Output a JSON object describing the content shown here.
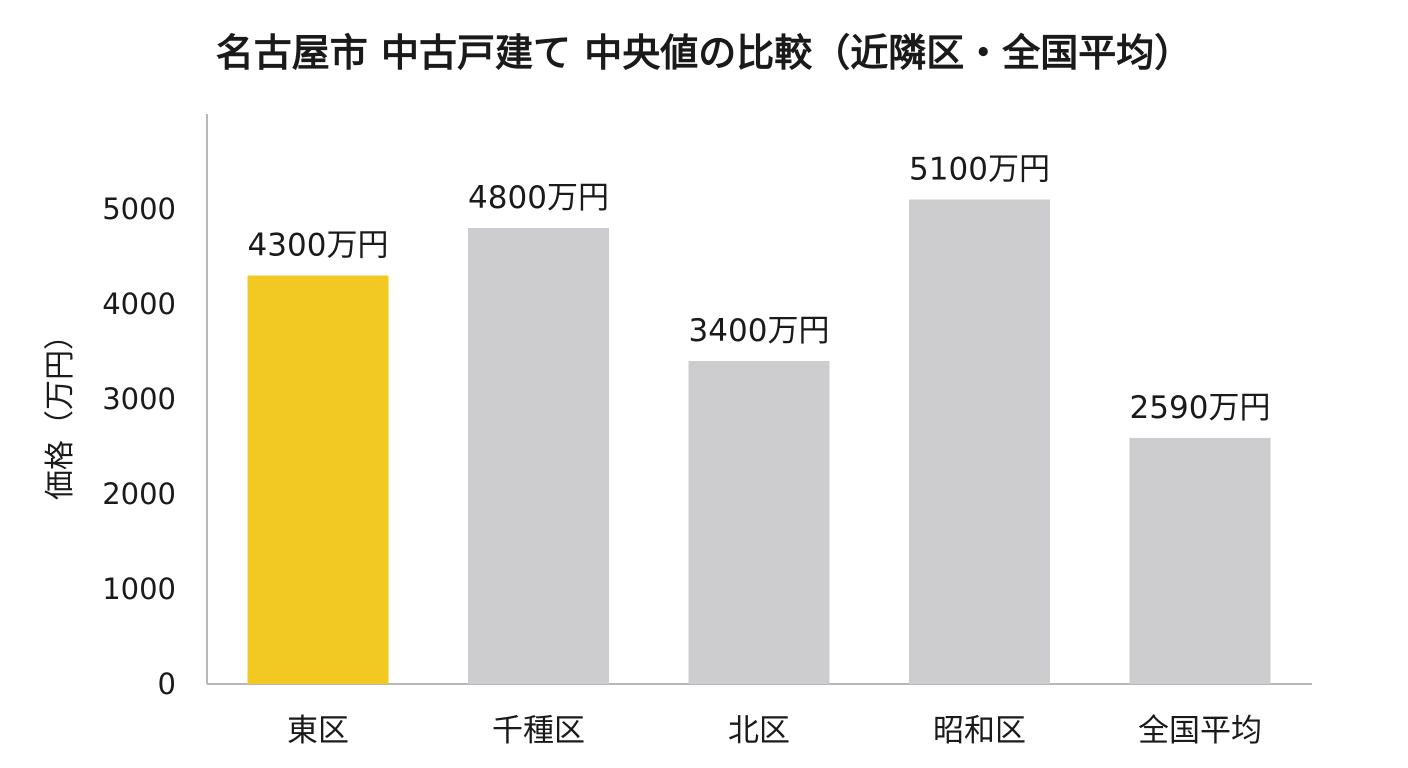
{
  "chart_data": {
    "type": "bar",
    "title": "名古屋市 中古戸建て 中央値の比較（近隣区・全国平均）",
    "ylabel": "価格（万円）",
    "xlabel": "",
    "categories": [
      "東区",
      "千種区",
      "北区",
      "昭和区",
      "全国平均"
    ],
    "values": [
      4300,
      4800,
      3400,
      5100,
      2590
    ],
    "data_labels": [
      "4300万円",
      "4800万円",
      "3400万円",
      "5100万円",
      "2590万円"
    ],
    "yticks": [
      0,
      1000,
      2000,
      3000,
      4000,
      5000
    ],
    "ylim": [
      0,
      6000
    ],
    "grid": false,
    "colors": {
      "highlight": "#F2C823",
      "default": "#CDCDCF"
    },
    "highlight_index": 0
  }
}
